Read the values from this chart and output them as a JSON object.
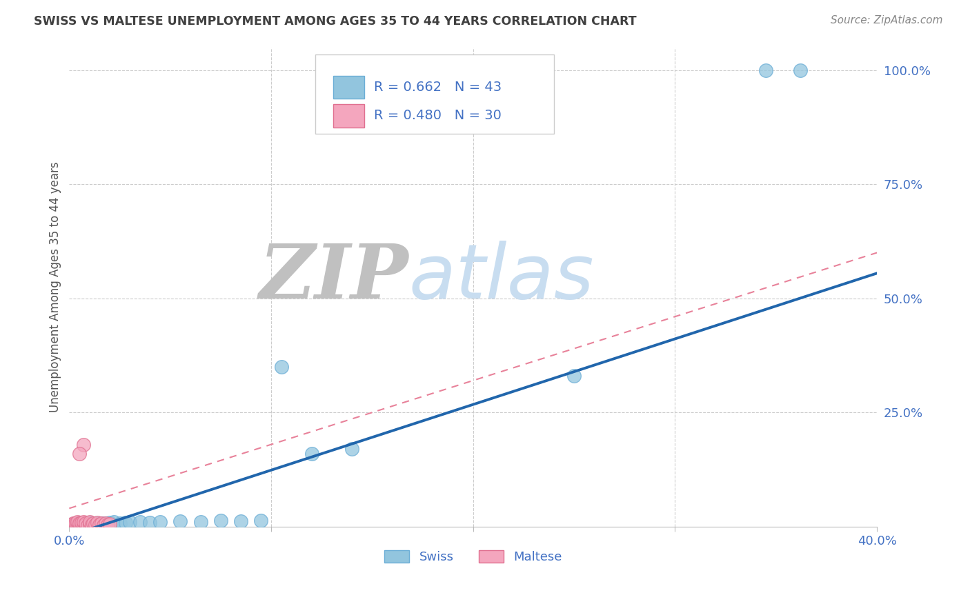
{
  "title": "SWISS VS MALTESE UNEMPLOYMENT AMONG AGES 35 TO 44 YEARS CORRELATION CHART",
  "source": "Source: ZipAtlas.com",
  "ylabel": "Unemployment Among Ages 35 to 44 years",
  "xlim": [
    0.0,
    0.4
  ],
  "ylim": [
    0.0,
    1.05
  ],
  "swiss_color": "#92c5de",
  "swiss_edge_color": "#6baed6",
  "maltese_color": "#f4a6be",
  "maltese_edge_color": "#e07090",
  "swiss_line_color": "#2166ac",
  "maltese_line_color": "#e8829a",
  "swiss_R": 0.662,
  "swiss_N": 43,
  "maltese_R": 0.48,
  "maltese_N": 30,
  "watermark_ZIP_color": "#c0c0c0",
  "watermark_atlas_color": "#c8ddf0",
  "background_color": "#ffffff",
  "grid_color": "#cccccc",
  "title_color": "#404040",
  "tick_label_color": "#4472c4",
  "legend_text_color": "#4472c4",
  "swiss_x": [
    0.001,
    0.002,
    0.003,
    0.003,
    0.004,
    0.005,
    0.005,
    0.006,
    0.007,
    0.007,
    0.008,
    0.008,
    0.009,
    0.01,
    0.01,
    0.011,
    0.012,
    0.013,
    0.014,
    0.015,
    0.016,
    0.017,
    0.018,
    0.019,
    0.02,
    0.022,
    0.025,
    0.028,
    0.03,
    0.035,
    0.04,
    0.045,
    0.055,
    0.065,
    0.075,
    0.085,
    0.095,
    0.105,
    0.12,
    0.14,
    0.25,
    0.345,
    0.362
  ],
  "swiss_y": [
    0.005,
    0.003,
    0.004,
    0.007,
    0.003,
    0.006,
    0.009,
    0.004,
    0.007,
    0.005,
    0.003,
    0.008,
    0.006,
    0.004,
    0.009,
    0.007,
    0.005,
    0.006,
    0.008,
    0.004,
    0.007,
    0.005,
    0.008,
    0.006,
    0.009,
    0.01,
    0.008,
    0.009,
    0.01,
    0.011,
    0.009,
    0.01,
    0.012,
    0.011,
    0.013,
    0.012,
    0.014,
    0.35,
    0.16,
    0.17,
    0.33,
    1.0,
    1.0
  ],
  "maltese_x": [
    0.001,
    0.002,
    0.002,
    0.003,
    0.003,
    0.004,
    0.004,
    0.005,
    0.005,
    0.006,
    0.006,
    0.007,
    0.007,
    0.008,
    0.008,
    0.009,
    0.01,
    0.01,
    0.011,
    0.012,
    0.013,
    0.014,
    0.015,
    0.016,
    0.017,
    0.018,
    0.019,
    0.02,
    0.007,
    0.005
  ],
  "maltese_y": [
    0.005,
    0.004,
    0.008,
    0.003,
    0.007,
    0.005,
    0.01,
    0.004,
    0.008,
    0.003,
    0.009,
    0.005,
    0.011,
    0.004,
    0.008,
    0.003,
    0.006,
    0.01,
    0.005,
    0.007,
    0.004,
    0.009,
    0.005,
    0.007,
    0.003,
    0.008,
    0.005,
    0.006,
    0.18,
    0.16
  ],
  "swiss_line_x": [
    0.0,
    0.4
  ],
  "swiss_line_y": [
    -0.02,
    0.555
  ],
  "maltese_line_x": [
    0.0,
    0.4
  ],
  "maltese_line_y": [
    0.04,
    0.6
  ]
}
